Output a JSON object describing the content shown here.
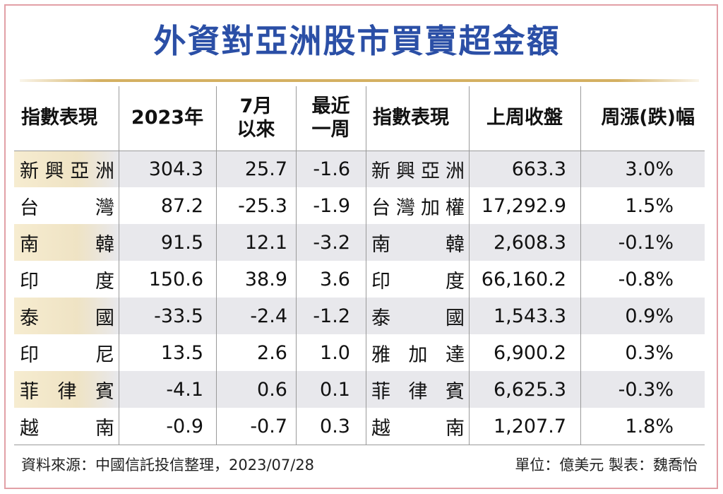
{
  "title": "外資對亞洲股市買賣超金額",
  "chart_data": {
    "type": "table",
    "left_table": {
      "headers": [
        "指數表現",
        "2023年",
        "7月\n以來",
        "最近\n一周"
      ],
      "rows": [
        {
          "name": "新興亞洲",
          "v2023": "304.3",
          "since_jul": "25.7",
          "week": "-1.6"
        },
        {
          "name": "台　　灣",
          "v2023": "87.2",
          "since_jul": "-25.3",
          "week": "-1.9"
        },
        {
          "name": "南　　韓",
          "v2023": "91.5",
          "since_jul": "12.1",
          "week": "-3.2"
        },
        {
          "name": "印　　度",
          "v2023": "150.6",
          "since_jul": "38.9",
          "week": "3.6"
        },
        {
          "name": "泰　　國",
          "v2023": "-33.5",
          "since_jul": "-2.4",
          "week": "-1.2"
        },
        {
          "name": "印　　尼",
          "v2023": "13.5",
          "since_jul": "2.6",
          "week": "1.0"
        },
        {
          "name": "菲 律 賓",
          "v2023": "-4.1",
          "since_jul": "0.6",
          "week": "0.1"
        },
        {
          "name": "越　　南",
          "v2023": "-0.9",
          "since_jul": "-0.7",
          "week": "0.3"
        }
      ]
    },
    "right_table": {
      "headers": [
        "指數表現",
        "上周收盤",
        "周漲(跌)幅"
      ],
      "rows": [
        {
          "name": "新興亞洲",
          "close": "663.3",
          "change": "3.0%"
        },
        {
          "name": "台灣加權",
          "close": "17,292.9",
          "change": "1.5%"
        },
        {
          "name": "南　　韓",
          "close": "2,608.3",
          "change": "-0.1%"
        },
        {
          "name": "印　　度",
          "close": "66,160.2",
          "change": "-0.8%"
        },
        {
          "name": "泰　　國",
          "close": "1,543.3",
          "change": "0.9%"
        },
        {
          "name": "雅 加 達",
          "close": "6,900.2",
          "change": "0.3%"
        },
        {
          "name": "菲 律 賓",
          "close": "6,625.3",
          "change": "-0.3%"
        },
        {
          "name": "越　　南",
          "close": "1,207.7",
          "change": "1.8%"
        }
      ]
    }
  },
  "footer": {
    "source": "資料來源：中國信託投信整理，2023/07/28",
    "unit_credit": "單位：億美元  製表：魏喬怡"
  },
  "colors": {
    "title": "#2b4fa6",
    "frame": "#e2a0a6",
    "gold_line": "#d4b062",
    "stripe": "#e8e8ec"
  }
}
